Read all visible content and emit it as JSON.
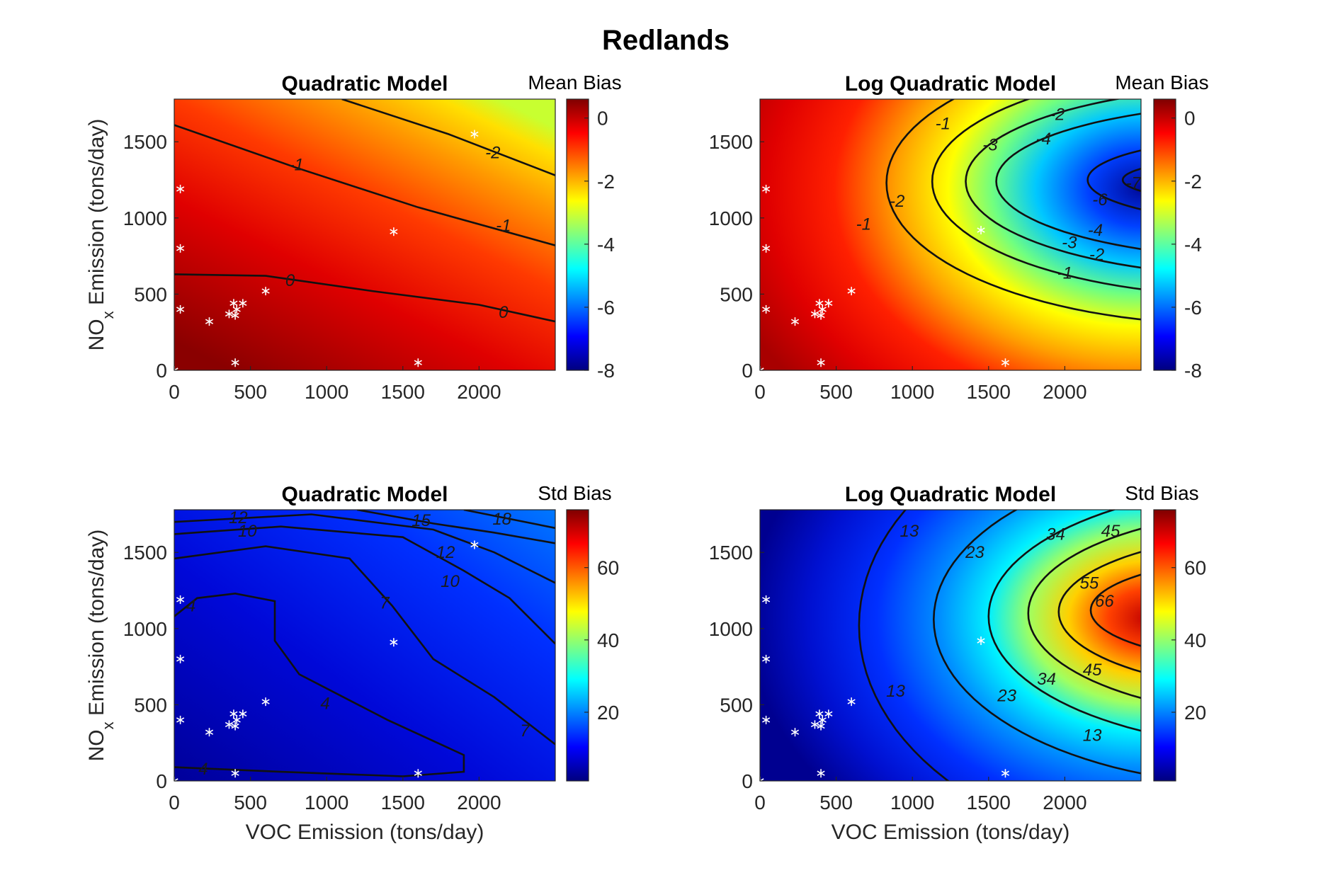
{
  "figure_title": "Redlands",
  "chart_data": [
    {
      "type": "heatmap",
      "title": "Quadratic Model",
      "colorbar_label": "Mean Bias",
      "xlabel": "",
      "ylabel_main": "NO",
      "ylabel_sub": "x",
      "ylabel_rest": " Emission (tons/day)",
      "xlim": [
        0,
        2500
      ],
      "ylim": [
        0,
        1780
      ],
      "xticks": [
        "0",
        "500",
        "1000",
        "1500",
        "2000"
      ],
      "yticks": [
        "0",
        "500",
        "1000",
        "1500"
      ],
      "colorbar_range": [
        -8,
        0.6
      ],
      "colorbar_ticks": [
        "-8",
        "-6",
        "-4",
        "-2",
        "0"
      ],
      "colormap": "jet",
      "contours": [
        {
          "label": "0",
          "points": [
            [
              0,
              630
            ],
            [
              600,
              620
            ],
            [
              1300,
              520
            ],
            [
              2000,
              430
            ],
            [
              2500,
              320
            ]
          ]
        },
        {
          "label": "-1",
          "points": [
            [
              0,
              1610
            ],
            [
              800,
              1330
            ],
            [
              1600,
              1070
            ],
            [
              2500,
              820
            ]
          ]
        },
        {
          "label": "-2",
          "points": [
            [
              1100,
              1780
            ],
            [
              1800,
              1550
            ],
            [
              2500,
              1280
            ]
          ]
        }
      ],
      "contour_labels": [
        {
          "text": "0",
          "x": 760,
          "y": 590
        },
        {
          "text": "0",
          "x": 2160,
          "y": 380
        },
        {
          "text": "-1",
          "x": 800,
          "y": 1350
        },
        {
          "text": "-1",
          "x": 2160,
          "y": 950
        },
        {
          "text": "-2",
          "x": 2090,
          "y": 1430
        }
      ],
      "observations": [
        [
          1970,
          1550
        ],
        [
          40,
          1190
        ],
        [
          1440,
          910
        ],
        [
          40,
          800
        ],
        [
          600,
          520
        ],
        [
          450,
          440
        ],
        [
          390,
          440
        ],
        [
          410,
          400
        ],
        [
          40,
          400
        ],
        [
          360,
          370
        ],
        [
          400,
          360
        ],
        [
          230,
          320
        ],
        [
          1600,
          50
        ],
        [
          400,
          50
        ],
        [
          0,
          0
        ]
      ]
    },
    {
      "type": "heatmap",
      "title": "Log Quadratic Model",
      "colorbar_label": "Mean Bias",
      "xlabel": "",
      "ylabel_main": "",
      "ylabel_sub": "",
      "ylabel_rest": "",
      "xlim": [
        0,
        2500
      ],
      "ylim": [
        0,
        1780
      ],
      "xticks": [
        "0",
        "500",
        "1000",
        "1500",
        "2000"
      ],
      "yticks": [
        "0",
        "500",
        "1000",
        "1500"
      ],
      "colorbar_range": [
        -8,
        0.6
      ],
      "colorbar_ticks": [
        "-8",
        "-6",
        "-4",
        "-2",
        "0"
      ],
      "colormap": "jet",
      "contours": [],
      "contour_labels": [
        {
          "text": "-1",
          "x": 1200,
          "y": 1620
        },
        {
          "text": "-2",
          "x": 1950,
          "y": 1680
        },
        {
          "text": "-3",
          "x": 1510,
          "y": 1480
        },
        {
          "text": "-4",
          "x": 1860,
          "y": 1520
        },
        {
          "text": "-7",
          "x": 2450,
          "y": 1230
        },
        {
          "text": "-6",
          "x": 2230,
          "y": 1120
        },
        {
          "text": "-2",
          "x": 900,
          "y": 1110
        },
        {
          "text": "-1",
          "x": 680,
          "y": 960
        },
        {
          "text": "-4",
          "x": 2200,
          "y": 920
        },
        {
          "text": "-3",
          "x": 2030,
          "y": 840
        },
        {
          "text": "-2",
          "x": 2210,
          "y": 760
        },
        {
          "text": "-1",
          "x": 2000,
          "y": 640
        }
      ],
      "observations": [
        [
          1450,
          920
        ],
        [
          40,
          1190
        ],
        [
          40,
          800
        ],
        [
          600,
          520
        ],
        [
          450,
          440
        ],
        [
          390,
          440
        ],
        [
          410,
          400
        ],
        [
          40,
          400
        ],
        [
          360,
          370
        ],
        [
          400,
          360
        ],
        [
          230,
          320
        ],
        [
          1610,
          50
        ],
        [
          400,
          50
        ],
        [
          0,
          0
        ]
      ]
    },
    {
      "type": "heatmap",
      "title": "Quadratic Model",
      "colorbar_label": "Std Bias",
      "xlabel": "VOC Emission (tons/day)",
      "ylabel_main": "NO",
      "ylabel_sub": "x",
      "ylabel_rest": " Emission (tons/day)",
      "xlim": [
        0,
        2500
      ],
      "ylim": [
        0,
        1780
      ],
      "xticks": [
        "0",
        "500",
        "1000",
        "1500",
        "2000"
      ],
      "yticks": [
        "0",
        "500",
        "1000",
        "1500"
      ],
      "colorbar_range": [
        1,
        76
      ],
      "colorbar_ticks": [
        "20",
        "40",
        "60"
      ],
      "colormap": "jet",
      "contours": [
        {
          "label": "4",
          "points": [
            [
              0,
              1080
            ],
            [
              150,
              1200
            ],
            [
              400,
              1230
            ],
            [
              660,
              1180
            ],
            [
              660,
              920
            ],
            [
              820,
              700
            ],
            [
              1400,
              400
            ],
            [
              1900,
              170
            ],
            [
              1900,
              60
            ],
            [
              1500,
              30
            ],
            [
              700,
              60
            ],
            [
              0,
              90
            ]
          ]
        },
        {
          "label": "7",
          "points": [
            [
              0,
              1460
            ],
            [
              600,
              1540
            ],
            [
              1150,
              1460
            ],
            [
              1430,
              1150
            ],
            [
              1700,
              800
            ],
            [
              2100,
              550
            ],
            [
              2500,
              240
            ]
          ]
        },
        {
          "label": "10",
          "points": [
            [
              0,
              1620
            ],
            [
              700,
              1670
            ],
            [
              1500,
              1600
            ],
            [
              1900,
              1380
            ],
            [
              2200,
              1200
            ],
            [
              2500,
              900
            ]
          ]
        },
        {
          "label": "12",
          "points": [
            [
              0,
              1700
            ],
            [
              900,
              1750
            ],
            [
              1700,
              1650
            ],
            [
              2100,
              1500
            ],
            [
              2500,
              1300
            ]
          ]
        },
        {
          "label": "15",
          "points": [
            [
              1200,
              1780
            ],
            [
              1700,
              1690
            ],
            [
              2100,
              1630
            ],
            [
              2500,
              1560
            ]
          ]
        },
        {
          "label": "18",
          "points": [
            [
              1900,
              1780
            ],
            [
              2200,
              1720
            ],
            [
              2500,
              1660
            ]
          ]
        }
      ],
      "contour_labels": [
        {
          "text": "12",
          "x": 420,
          "y": 1730
        },
        {
          "text": "15",
          "x": 1620,
          "y": 1710
        },
        {
          "text": "18",
          "x": 2150,
          "y": 1720
        },
        {
          "text": "10",
          "x": 480,
          "y": 1640
        },
        {
          "text": "12",
          "x": 1780,
          "y": 1500
        },
        {
          "text": "10",
          "x": 1810,
          "y": 1310
        },
        {
          "text": "7",
          "x": 1380,
          "y": 1170
        },
        {
          "text": "4",
          "x": 110,
          "y": 1150
        },
        {
          "text": "4",
          "x": 990,
          "y": 510
        },
        {
          "text": "7",
          "x": 2300,
          "y": 330
        },
        {
          "text": "4",
          "x": 190,
          "y": 80
        }
      ],
      "observations": [
        [
          1970,
          1550
        ],
        [
          40,
          1190
        ],
        [
          1440,
          910
        ],
        [
          40,
          800
        ],
        [
          600,
          520
        ],
        [
          450,
          440
        ],
        [
          390,
          440
        ],
        [
          410,
          400
        ],
        [
          40,
          400
        ],
        [
          360,
          370
        ],
        [
          400,
          360
        ],
        [
          230,
          320
        ],
        [
          1600,
          50
        ],
        [
          400,
          50
        ],
        [
          0,
          0
        ]
      ]
    },
    {
      "type": "heatmap",
      "title": "Log Quadratic Model",
      "colorbar_label": "Std Bias",
      "xlabel": "VOC Emission (tons/day)",
      "ylabel_main": "",
      "ylabel_sub": "",
      "ylabel_rest": "",
      "xlim": [
        0,
        2500
      ],
      "ylim": [
        0,
        1780
      ],
      "xticks": [
        "0",
        "500",
        "1000",
        "1500",
        "2000"
      ],
      "yticks": [
        "0",
        "500",
        "1000",
        "1500"
      ],
      "colorbar_range": [
        1,
        76
      ],
      "colorbar_ticks": [
        "20",
        "40",
        "60"
      ],
      "colormap": "jet",
      "contours": [],
      "contour_labels": [
        {
          "text": "13",
          "x": 980,
          "y": 1640
        },
        {
          "text": "23",
          "x": 1410,
          "y": 1500
        },
        {
          "text": "34",
          "x": 1940,
          "y": 1620
        },
        {
          "text": "45",
          "x": 2300,
          "y": 1640
        },
        {
          "text": "55",
          "x": 2160,
          "y": 1300
        },
        {
          "text": "66",
          "x": 2260,
          "y": 1180
        },
        {
          "text": "45",
          "x": 2180,
          "y": 730
        },
        {
          "text": "34",
          "x": 1880,
          "y": 670
        },
        {
          "text": "23",
          "x": 1620,
          "y": 560
        },
        {
          "text": "13",
          "x": 890,
          "y": 590
        },
        {
          "text": "13",
          "x": 2180,
          "y": 300
        }
      ],
      "observations": [
        [
          1450,
          920
        ],
        [
          40,
          1190
        ],
        [
          40,
          800
        ],
        [
          600,
          520
        ],
        [
          450,
          440
        ],
        [
          390,
          440
        ],
        [
          410,
          400
        ],
        [
          40,
          400
        ],
        [
          360,
          370
        ],
        [
          400,
          360
        ],
        [
          230,
          320
        ],
        [
          1610,
          50
        ],
        [
          400,
          50
        ],
        [
          0,
          0
        ]
      ]
    }
  ]
}
